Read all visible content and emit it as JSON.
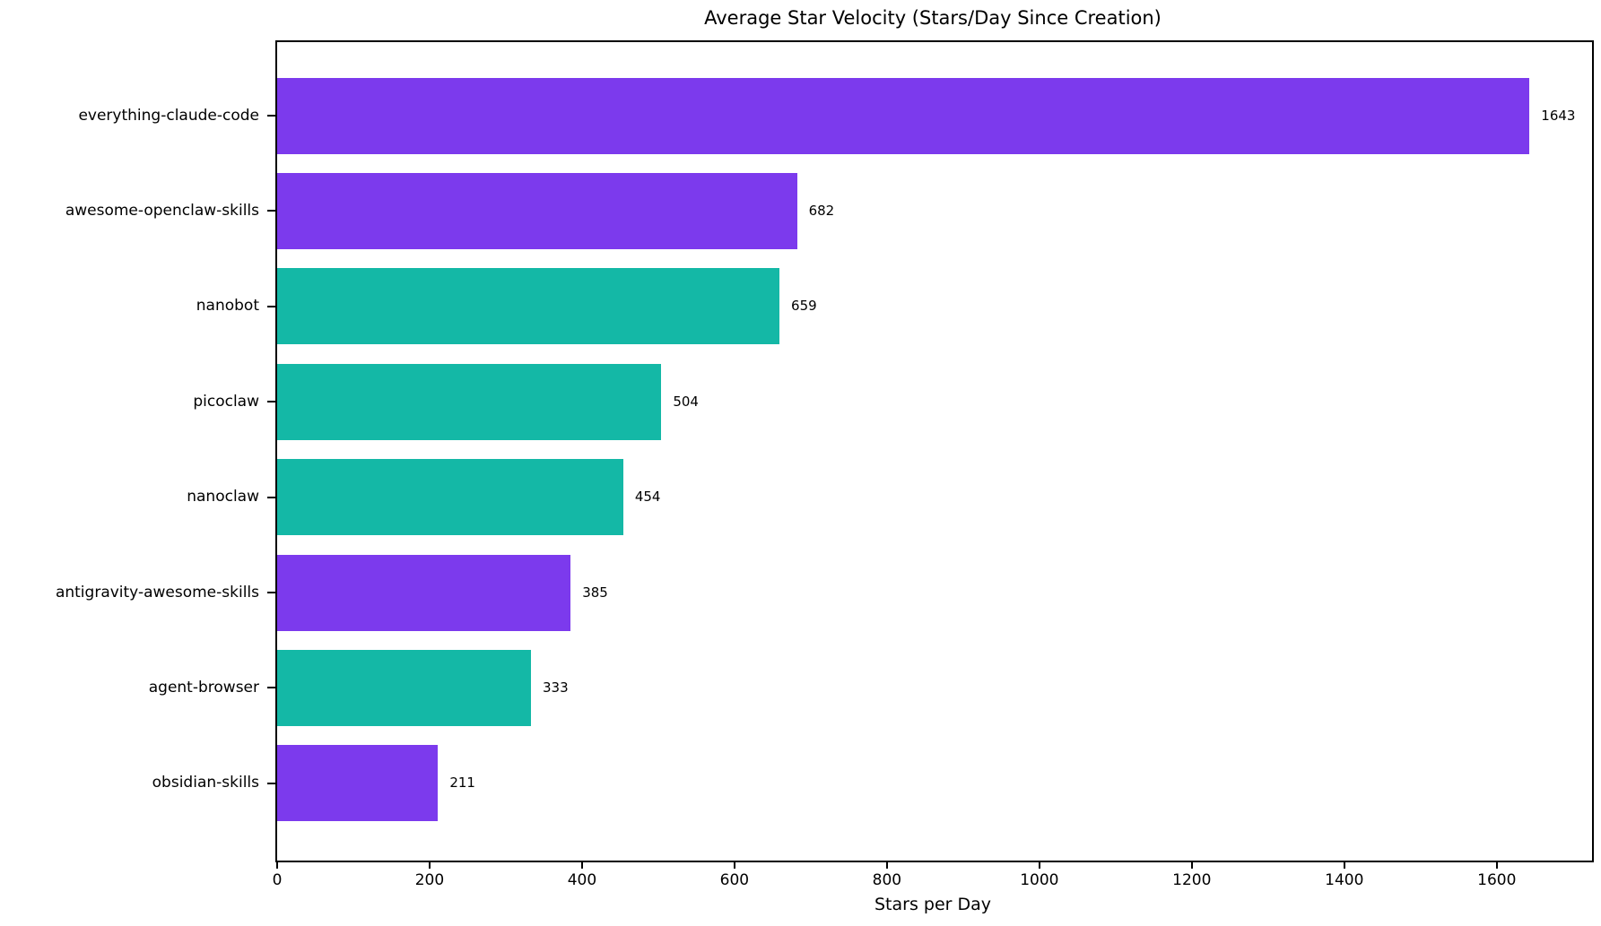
{
  "chart_data": {
    "type": "bar",
    "orientation": "horizontal",
    "title": "Average Star Velocity (Stars/Day Since Creation)",
    "xlabel": "Stars per Day",
    "ylabel": "",
    "categories": [
      "everything-claude-code",
      "awesome-openclaw-skills",
      "nanobot",
      "picoclaw",
      "nanoclaw",
      "antigravity-awesome-skills",
      "agent-browser",
      "obsidian-skills"
    ],
    "values": [
      1643,
      682,
      659,
      504,
      454,
      385,
      333,
      211
    ],
    "bar_colors": [
      "#7C3AED",
      "#7C3AED",
      "#14B8A6",
      "#14B8A6",
      "#14B8A6",
      "#7C3AED",
      "#14B8A6",
      "#7C3AED"
    ],
    "value_labels": [
      "1643",
      "682",
      "659",
      "504",
      "454",
      "385",
      "333",
      "211"
    ],
    "xlim": [
      0,
      1725
    ],
    "xticks": [
      0,
      200,
      400,
      600,
      800,
      1000,
      1200,
      1400,
      1600
    ],
    "grid": false,
    "legend": null
  },
  "colors": {
    "purple": "#7C3AED",
    "teal": "#14B8A6",
    "axis": "#000000",
    "background": "#ffffff",
    "text": "#000000"
  }
}
